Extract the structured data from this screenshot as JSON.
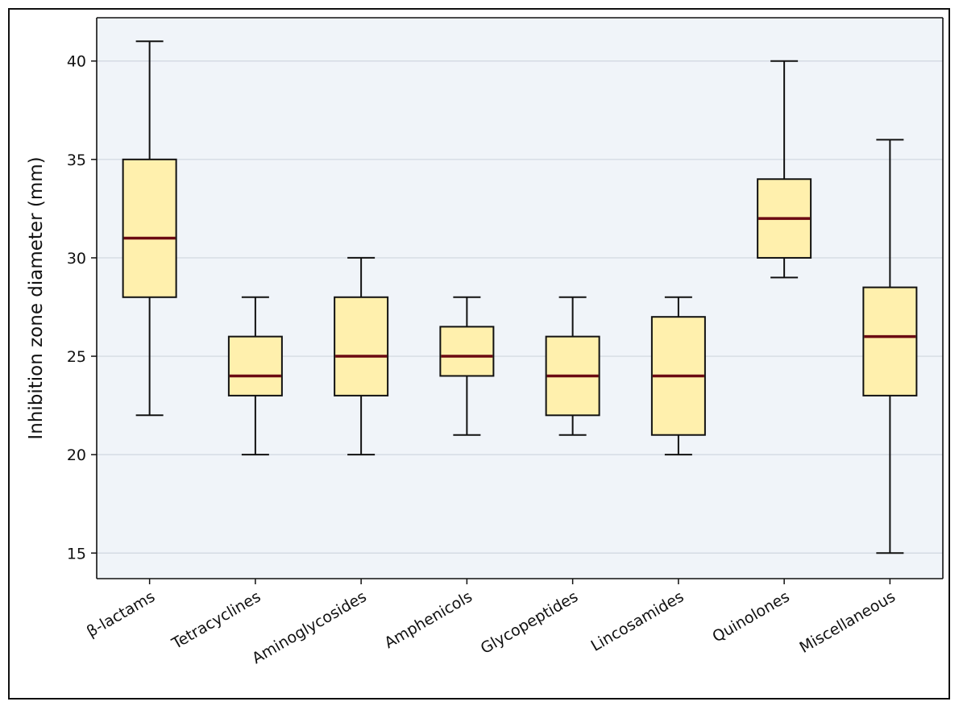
{
  "chart_data": {
    "type": "box",
    "title": "",
    "xlabel": "",
    "ylabel": "Inhibition zone diameter (mm)",
    "ylim": [
      13.7,
      42.2
    ],
    "yticks": [
      15,
      20,
      25,
      30,
      35,
      40
    ],
    "grid": "horizontal",
    "colors": {
      "plot_background": "#f0f4f9",
      "box_fill": "#fff0ad",
      "median": "#6b0a12",
      "grid": "#cfd6df",
      "stroke": "#111111"
    },
    "categories": [
      "β-lactams",
      "Tetracyclines",
      "Aminoglycosides",
      "Amphenicols",
      "Glycopeptides",
      "Lincosamides",
      "Quinolones",
      "Miscellaneous"
    ],
    "boxes": [
      {
        "min": 22,
        "q1": 28,
        "median": 31,
        "q3": 35,
        "max": 41
      },
      {
        "min": 20,
        "q1": 23,
        "median": 24,
        "q3": 26,
        "max": 28
      },
      {
        "min": 20,
        "q1": 23,
        "median": 25,
        "q3": 28,
        "max": 30
      },
      {
        "min": 21,
        "q1": 24,
        "median": 25,
        "q3": 26.5,
        "max": 28
      },
      {
        "min": 21,
        "q1": 22,
        "median": 24,
        "q3": 26,
        "max": 28
      },
      {
        "min": 20,
        "q1": 21,
        "median": 24,
        "q3": 27,
        "max": 28
      },
      {
        "min": 29,
        "q1": 30,
        "median": 32,
        "q3": 34,
        "max": 40
      },
      {
        "min": 15,
        "q1": 23,
        "median": 26,
        "q3": 28.5,
        "max": 36
      }
    ]
  }
}
